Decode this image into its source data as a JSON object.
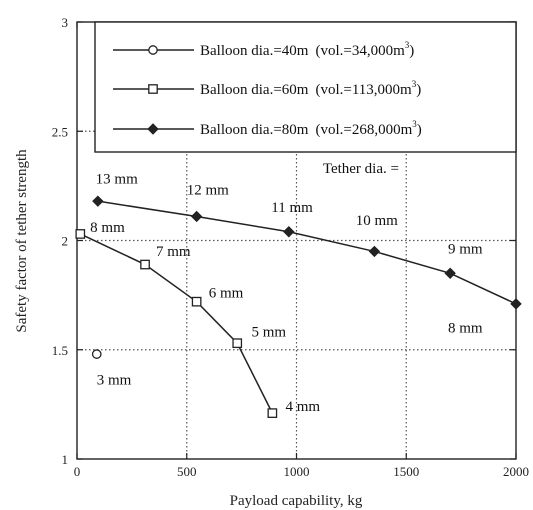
{
  "chart_data": {
    "type": "line",
    "xlabel": "Payload capability,  kg",
    "ylabel": "Safety factor of  tether strength",
    "xlim": [
      0,
      2000
    ],
    "ylim": [
      1,
      3
    ],
    "xticks": [
      0,
      500,
      1000,
      1500,
      2000
    ],
    "yticks": [
      1,
      1.5,
      2,
      2.5,
      3
    ],
    "xtick_labels": [
      "0",
      "500",
      "1000",
      "1500",
      "2000"
    ],
    "ytick_labels": [
      "1",
      "1.5",
      "2",
      "2.5",
      "3"
    ],
    "grid": true,
    "legend_position": "top-right",
    "series": [
      {
        "name": "Balloon dia.=40m",
        "vol_prefix": "(vol.=34,000m",
        "vol_suffix": ")",
        "vol_sup": "3",
        "marker": "circle-open",
        "color": "#222222",
        "x": [
          90
        ],
        "y": [
          1.48
        ]
      },
      {
        "name": "Balloon dia.=60m",
        "vol_prefix": "(vol.=113,000m",
        "vol_suffix": ")",
        "vol_sup": "3",
        "marker": "square-open",
        "color": "#222222",
        "x": [
          15,
          310,
          545,
          730,
          890
        ],
        "y": [
          2.03,
          1.89,
          1.72,
          1.53,
          1.21
        ]
      },
      {
        "name": "Balloon dia.=80m",
        "vol_prefix": "(vol.=268,000m",
        "vol_suffix": ")",
        "vol_sup": "3",
        "marker": "diamond-filled",
        "color": "#222222",
        "x": [
          95,
          545,
          965,
          1355,
          1700,
          2000
        ],
        "y": [
          2.18,
          2.11,
          2.04,
          1.95,
          1.85,
          1.71
        ]
      }
    ],
    "annotations": [
      {
        "text": "Tether dia. =",
        "x": 1120,
        "y": 2.31
      },
      {
        "text": "13 mm",
        "x": 85,
        "y": 2.26
      },
      {
        "text": "12 mm",
        "x": 500,
        "y": 2.21
      },
      {
        "text": "11 mm",
        "x": 885,
        "y": 2.13
      },
      {
        "text": "10 mm",
        "x": 1270,
        "y": 2.07
      },
      {
        "text": "9 mm",
        "x": 1690,
        "y": 1.94
      },
      {
        "text": "8 mm",
        "x": 1690,
        "y": 1.58
      },
      {
        "text": "8 mm",
        "x": 60,
        "y": 2.04
      },
      {
        "text": "7 mm",
        "x": 360,
        "y": 1.93
      },
      {
        "text": "6 mm",
        "x": 600,
        "y": 1.74
      },
      {
        "text": "5 mm",
        "x": 795,
        "y": 1.56
      },
      {
        "text": "3 mm",
        "x": 90,
        "y": 1.34
      },
      {
        "text": "4 mm",
        "x": 950,
        "y": 1.22
      }
    ]
  }
}
